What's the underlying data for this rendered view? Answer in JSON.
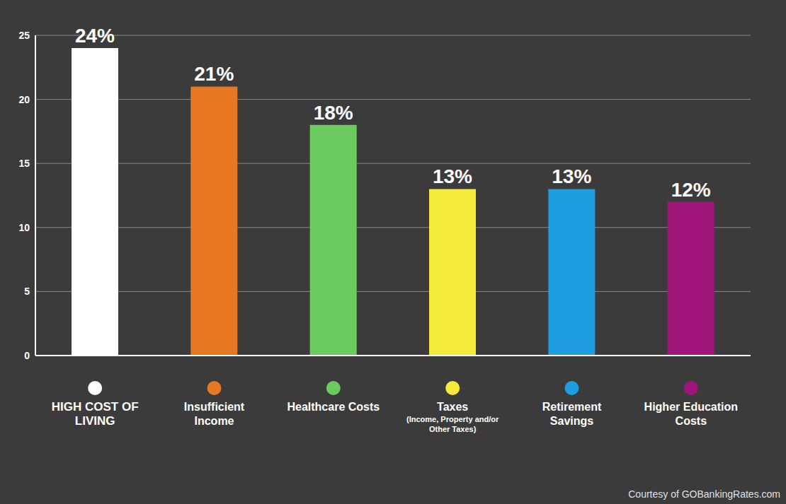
{
  "chart_data": {
    "type": "bar",
    "categories": [
      "HIGH COST OF LIVING",
      "Insufficient Income",
      "Healthcare Costs",
      "Taxes (Income, Property and/or Other Taxes)",
      "Retirement Savings",
      "Higher Education Costs"
    ],
    "values": [
      24,
      21,
      18,
      13,
      13,
      12
    ],
    "value_labels": [
      "24%",
      "21%",
      "18%",
      "13%",
      "13%",
      "12%"
    ],
    "colors": [
      "#ffffff",
      "#e87722",
      "#6ccb5f",
      "#f5eb3a",
      "#1e9ee0",
      "#a0157a"
    ],
    "ylim": [
      0,
      25
    ],
    "yticks": [
      0,
      5,
      10,
      15,
      20,
      25
    ],
    "grid": true,
    "data_labels": true,
    "source": "Courtesy of GOBankingRates.com"
  }
}
